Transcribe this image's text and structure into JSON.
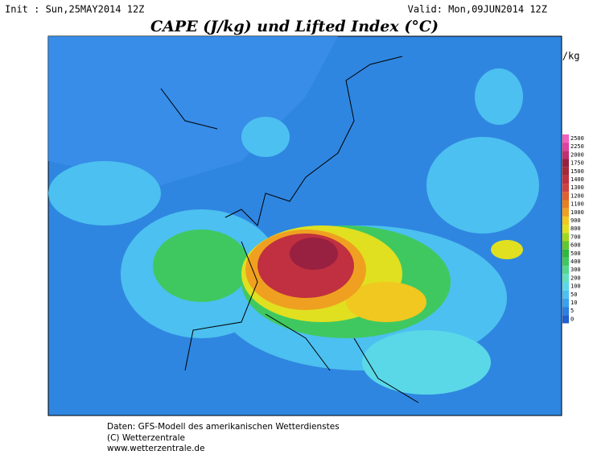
{
  "header": {
    "init": "Init : Sun,25MAY2014 12Z",
    "valid": "Valid: Mon,09JUN2014 12Z",
    "title": "CAPE (J/kg) und Lifted Index (°C)"
  },
  "legend": {
    "unit": "J/kg",
    "levels": [
      2500,
      2250,
      2000,
      1750,
      1500,
      1400,
      1300,
      1200,
      1100,
      1000,
      900,
      800,
      700,
      600,
      500,
      400,
      300,
      200,
      100,
      50,
      10,
      5,
      0
    ],
    "colors": [
      "#f060c0",
      "#e040a0",
      "#c03070",
      "#982040",
      "#a82838",
      "#c03040",
      "#d04040",
      "#e06030",
      "#e88020",
      "#f0a020",
      "#f0c820",
      "#e0e020",
      "#a0d820",
      "#60c830",
      "#30b840",
      "#40c860",
      "#50d890",
      "#60e0c0",
      "#5ad8e8",
      "#4cc0f0",
      "#3aa0f0",
      "#2a7fe0",
      "#1f5fd0"
    ]
  },
  "footer": {
    "lines": [
      "Daten: GFS-Modell des amerikanischen Wetterdienstes",
      "(C) Wetterzentrale",
      "www.wetterzentrale.de"
    ]
  }
}
